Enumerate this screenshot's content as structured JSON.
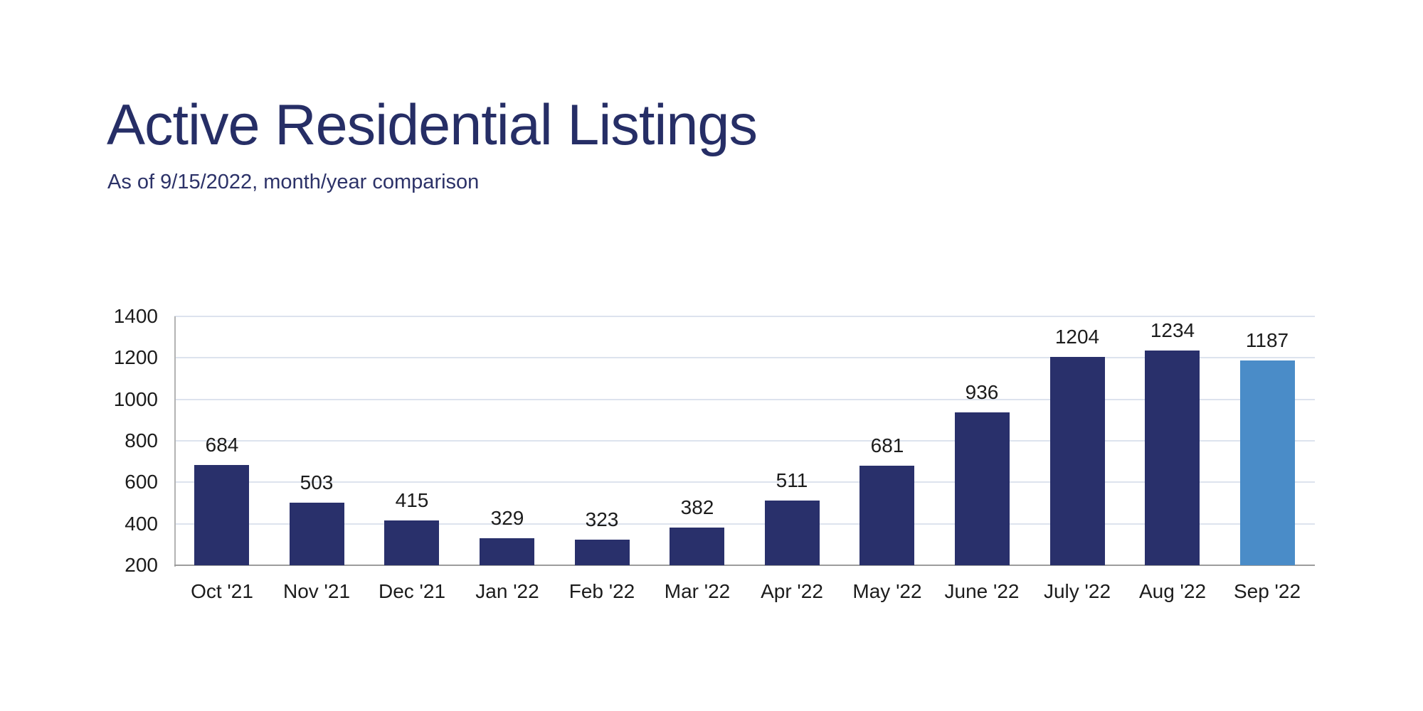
{
  "header": {
    "title": "Active Residential Listings",
    "subtitle": "As of 9/15/2022, month/year comparison"
  },
  "chart_data": {
    "type": "bar",
    "title": "Active Residential Listings",
    "subtitle": "As of 9/15/2022, month/year comparison",
    "categories": [
      "Oct '21",
      "Nov '21",
      "Dec '21",
      "Jan '22",
      "Feb '22",
      "Mar '22",
      "Apr '22",
      "May '22",
      "June '22",
      "July '22",
      "Aug '22",
      "Sep '22"
    ],
    "values": [
      684,
      503,
      415,
      329,
      323,
      382,
      511,
      681,
      936,
      1204,
      1234,
      1187
    ],
    "value_labels": [
      "684",
      "503",
      "415",
      "329",
      "323",
      "382",
      "511",
      "681",
      "936",
      "1204",
      "1234",
      "1187"
    ],
    "highlight_index": 11,
    "xlabel": "",
    "ylabel": "",
    "ylim": [
      200,
      1400
    ],
    "y_ticks": [
      200,
      400,
      600,
      800,
      1000,
      1200,
      1400
    ],
    "y_tick_labels": [
      "200",
      "400",
      "600",
      "800",
      "1000",
      "1200",
      "1400"
    ],
    "grid": true,
    "legend": "none",
    "colors": {
      "bar": "#29306b",
      "highlight_bar": "#4a8cc8",
      "gridline": "#dde3ee",
      "axis_line": "#b3b3b3",
      "baseline": "#9c9c9c",
      "title_text": "#262e66",
      "subtitle_text": "#2c3268",
      "value_label_text": "#1c1c1c",
      "tick_label_text": "#1c1c1c",
      "background": "#ffffff"
    }
  }
}
